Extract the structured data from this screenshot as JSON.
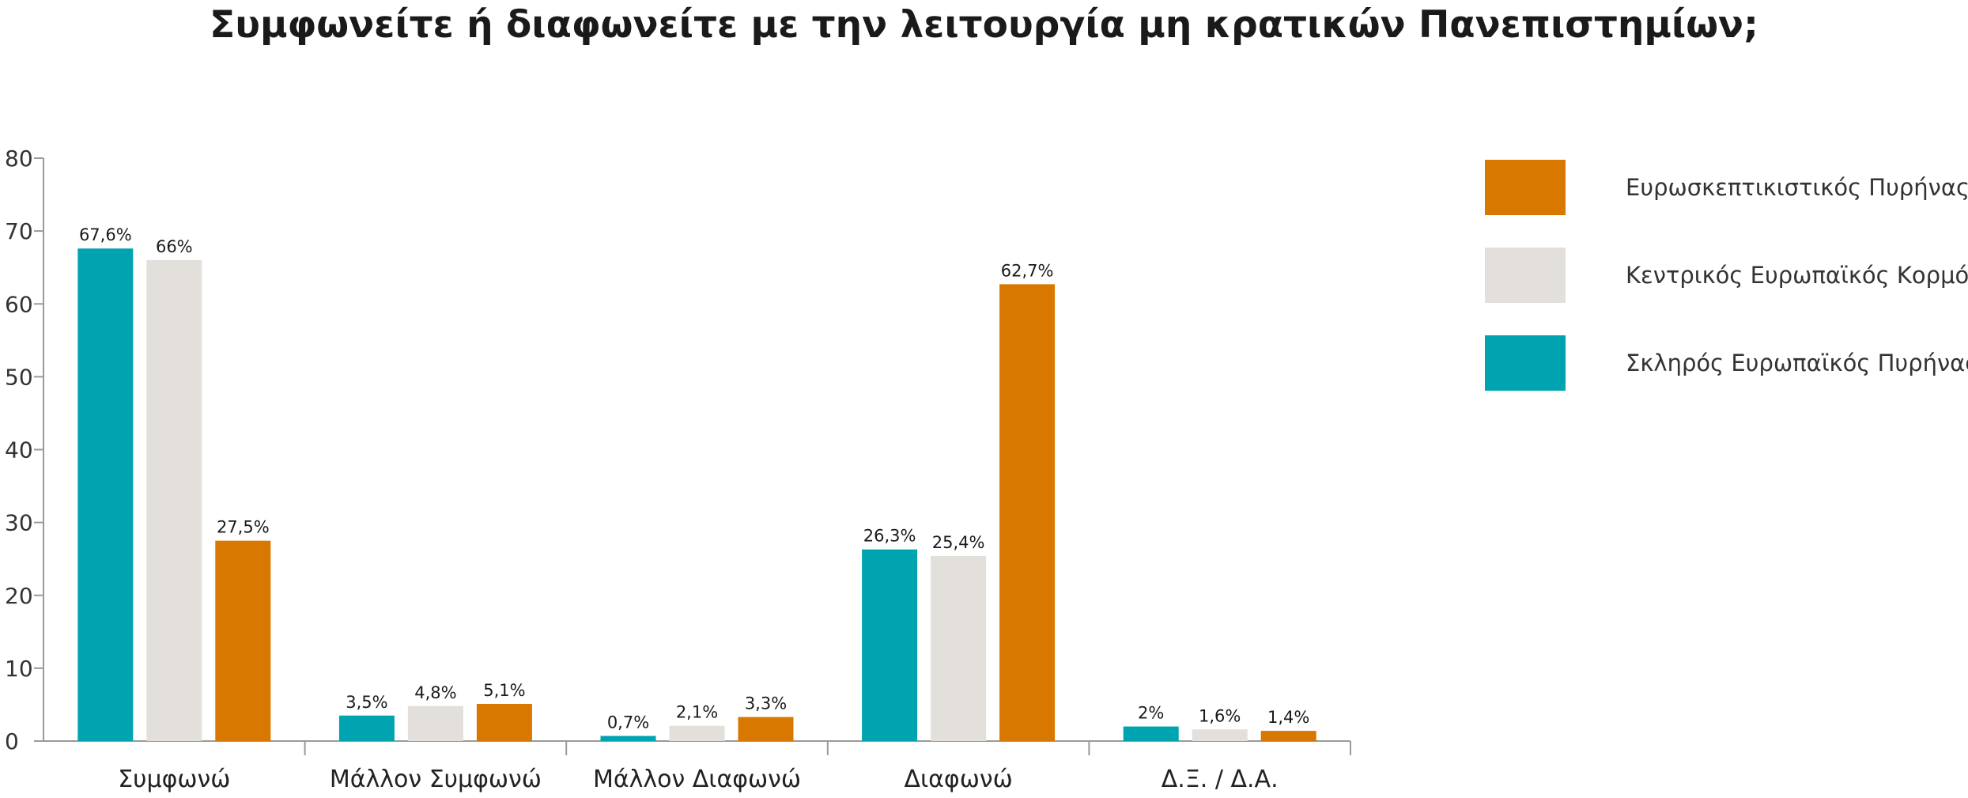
{
  "chart_data": {
    "type": "bar",
    "title": "Συμφωνείτε ή διαφωνείτε με την λειτουργία μη κρατικών Πανεπιστημίων;",
    "xlabel": "",
    "ylabel": "",
    "ylim": [
      0,
      80
    ],
    "yticks": [
      0,
      10,
      20,
      30,
      40,
      50,
      60,
      70,
      80
    ],
    "grid": false,
    "legend_position": "right",
    "categories": [
      "Συμφωνώ",
      "Μάλλον Συμφωνώ",
      "Μάλλον Διαφωνώ",
      "Διαφωνώ",
      "Δ.Ξ. / Δ.Α."
    ],
    "series": [
      {
        "name": "Σκληρός Ευρωπαϊκός Πυρήνας",
        "color": "#00A3B0",
        "values": [
          67.6,
          3.5,
          0.7,
          26.3,
          2
        ],
        "labels": [
          "67,6%",
          "3,5%",
          "0,7%",
          "26,3%",
          "2%"
        ]
      },
      {
        "name": "Κεντρικός Ευρωπαϊκός Κορμός",
        "color": "#E3DFDB",
        "values": [
          66,
          4.8,
          2.1,
          25.4,
          1.6
        ],
        "labels": [
          "66%",
          "4,8%",
          "2,1%",
          "25,4%",
          "1,6%"
        ]
      },
      {
        "name": "Ευρωσκεπτικιστικός Πυρήνας",
        "color": "#D97800",
        "values": [
          27.5,
          5.1,
          3.3,
          62.7,
          1.4
        ],
        "labels": [
          "27,5%",
          "5,1%",
          "3,3%",
          "62,7%",
          "1,4%"
        ]
      }
    ],
    "legend_order": [
      "Ευρωσκεπτικιστικός Πυρήνας",
      "Κεντρικός Ευρωπαϊκός Κορμός",
      "Σκληρός Ευρωπαϊκός Πυρήνας"
    ]
  }
}
